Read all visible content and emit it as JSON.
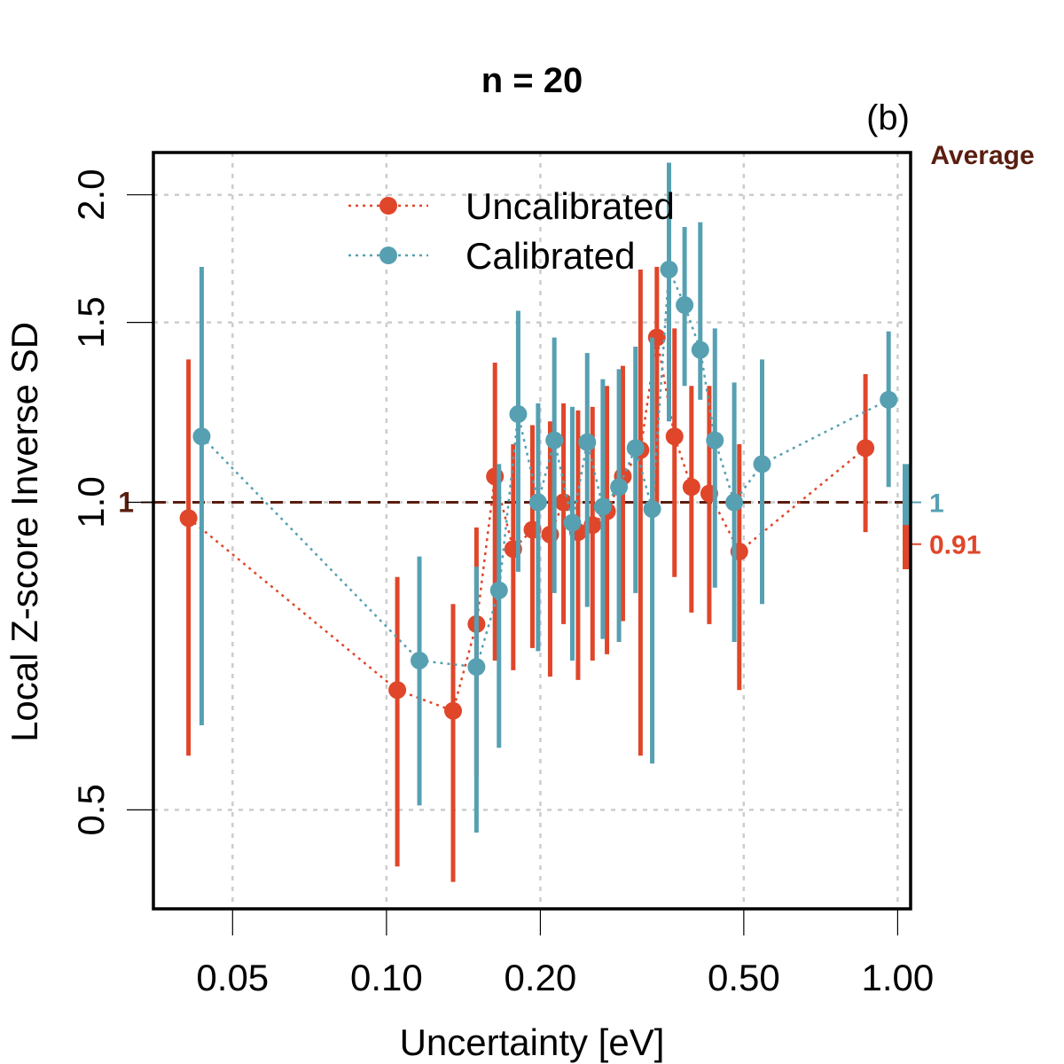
{
  "chart_data": {
    "type": "scatter",
    "title": "n = 20",
    "panel_label": "(b)",
    "xlabel": "Uncertainty [eV]",
    "ylabel": "Local Z-score Inverse SD",
    "x_scale": "log",
    "y_scale": "log",
    "xlim": [
      0.035,
      1.06
    ],
    "ylim": [
      0.4,
      2.2
    ],
    "x_ticks": [
      0.05,
      0.1,
      0.2,
      0.5,
      1.0
    ],
    "x_tick_labels": [
      "0.05",
      "0.10",
      "0.20",
      "0.50",
      "1.00"
    ],
    "y_ticks": [
      0.5,
      1.0,
      1.5,
      2.0
    ],
    "y_tick_labels": [
      "0.5",
      "1.0",
      "1.5",
      "2.0"
    ],
    "grid": true,
    "legend_position": "top-center",
    "reference_line": {
      "y": 1.0,
      "label": "1",
      "color": "#5a1e10"
    },
    "average": {
      "title": "Average",
      "title_color": "#5a1e10",
      "items": [
        {
          "label": "1",
          "value": 1.0,
          "low": 0.94,
          "high": 1.09,
          "color": "#56a0b2"
        },
        {
          "label": "0.91",
          "value": 0.91,
          "low": 0.86,
          "high": 0.95,
          "color": "#e0462a"
        }
      ]
    },
    "series": [
      {
        "name": "Uncalibrated",
        "color": "#e0462a",
        "points": [
          {
            "x": 0.041,
            "y": 0.965,
            "low": 0.565,
            "high": 1.38
          },
          {
            "x": 0.105,
            "y": 0.655,
            "low": 0.44,
            "high": 0.845
          },
          {
            "x": 0.135,
            "y": 0.625,
            "low": 0.425,
            "high": 0.795
          },
          {
            "x": 0.15,
            "y": 0.76,
            "low": 0.54,
            "high": 0.945
          },
          {
            "x": 0.163,
            "y": 1.06,
            "low": 0.7,
            "high": 1.37
          },
          {
            "x": 0.177,
            "y": 0.9,
            "low": 0.685,
            "high": 1.14
          },
          {
            "x": 0.193,
            "y": 0.94,
            "low": 0.72,
            "high": 1.19
          },
          {
            "x": 0.209,
            "y": 0.93,
            "low": 0.675,
            "high": 1.2
          },
          {
            "x": 0.222,
            "y": 1.0,
            "low": 0.76,
            "high": 1.25
          },
          {
            "x": 0.237,
            "y": 0.935,
            "low": 0.67,
            "high": 1.23
          },
          {
            "x": 0.253,
            "y": 0.95,
            "low": 0.7,
            "high": 1.24
          },
          {
            "x": 0.27,
            "y": 0.98,
            "low": 0.71,
            "high": 1.3
          },
          {
            "x": 0.29,
            "y": 1.06,
            "low": 0.765,
            "high": 1.36
          },
          {
            "x": 0.314,
            "y": 1.125,
            "low": 0.565,
            "high": 1.69
          },
          {
            "x": 0.338,
            "y": 1.45,
            "low": 0.995,
            "high": 1.7
          },
          {
            "x": 0.366,
            "y": 1.16,
            "low": 0.845,
            "high": 1.48
          },
          {
            "x": 0.395,
            "y": 1.035,
            "low": 0.78,
            "high": 1.3
          },
          {
            "x": 0.428,
            "y": 1.02,
            "low": 0.76,
            "high": 1.3
          },
          {
            "x": 0.49,
            "y": 0.895,
            "low": 0.655,
            "high": 1.14
          },
          {
            "x": 0.865,
            "y": 1.13,
            "low": 0.935,
            "high": 1.335
          }
        ]
      },
      {
        "name": "Calibrated",
        "color": "#56a0b2",
        "points": [
          {
            "x": 0.0435,
            "y": 1.16,
            "low": 0.605,
            "high": 1.7
          },
          {
            "x": 0.116,
            "y": 0.7,
            "low": 0.505,
            "high": 0.885
          },
          {
            "x": 0.15,
            "y": 0.69,
            "low": 0.475,
            "high": 0.865
          },
          {
            "x": 0.166,
            "y": 0.82,
            "low": 0.575,
            "high": 1.09
          },
          {
            "x": 0.181,
            "y": 1.22,
            "low": 0.855,
            "high": 1.54
          },
          {
            "x": 0.198,
            "y": 1.0,
            "low": 0.715,
            "high": 1.25
          },
          {
            "x": 0.213,
            "y": 1.15,
            "low": 0.815,
            "high": 1.45
          },
          {
            "x": 0.231,
            "y": 0.955,
            "low": 0.7,
            "high": 1.24
          },
          {
            "x": 0.247,
            "y": 1.145,
            "low": 0.79,
            "high": 1.4
          },
          {
            "x": 0.265,
            "y": 0.99,
            "low": 0.735,
            "high": 1.32
          },
          {
            "x": 0.285,
            "y": 1.035,
            "low": 0.73,
            "high": 1.35
          },
          {
            "x": 0.307,
            "y": 1.13,
            "low": 0.815,
            "high": 1.42
          },
          {
            "x": 0.331,
            "y": 0.985,
            "low": 0.555,
            "high": 1.45
          },
          {
            "x": 0.357,
            "y": 1.69,
            "low": 1.2,
            "high": 2.15
          },
          {
            "x": 0.383,
            "y": 1.56,
            "low": 1.3,
            "high": 1.86
          },
          {
            "x": 0.411,
            "y": 1.41,
            "low": 1.26,
            "high": 1.88
          },
          {
            "x": 0.439,
            "y": 1.15,
            "low": 0.825,
            "high": 1.48
          },
          {
            "x": 0.479,
            "y": 1.0,
            "low": 0.73,
            "high": 1.31
          },
          {
            "x": 0.543,
            "y": 1.09,
            "low": 0.795,
            "high": 1.38
          },
          {
            "x": 0.96,
            "y": 1.26,
            "low": 1.035,
            "high": 1.47
          }
        ]
      }
    ]
  }
}
